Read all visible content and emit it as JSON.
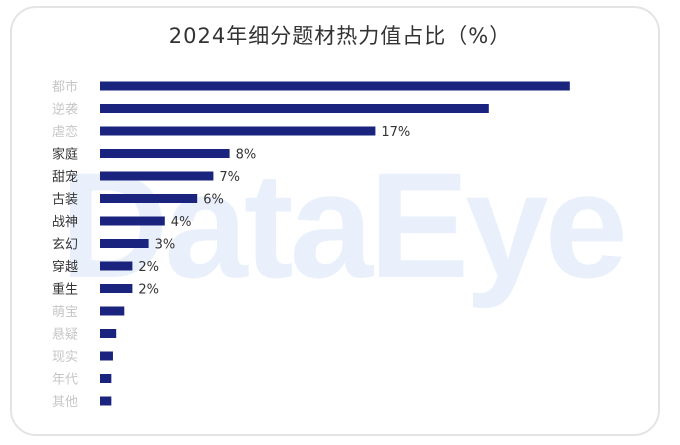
{
  "chart_data": {
    "type": "bar",
    "orientation": "horizontal",
    "title": "2024年细分题材热力值占比（%）",
    "watermark": "DataEye",
    "bar_color": "#1a237e",
    "categories": [
      "都市",
      "逆袭",
      "虐恋",
      "家庭",
      "甜宠",
      "古装",
      "战神",
      "玄幻",
      "穿越",
      "重生",
      "萌宝",
      "悬疑",
      "现实",
      "年代",
      "其他"
    ],
    "values": [
      29,
      24,
      17,
      8,
      7,
      6,
      4,
      3,
      2,
      2,
      1.5,
      1,
      0.8,
      0.7,
      0.7
    ],
    "value_labels": [
      "",
      "",
      "17%",
      "8%",
      "7%",
      "6%",
      "4%",
      "3%",
      "2%",
      "2%",
      "",
      "",
      "",
      "",
      ""
    ],
    "category_label_visible": [
      false,
      false,
      false,
      true,
      true,
      true,
      true,
      true,
      true,
      true,
      false,
      false,
      false,
      false,
      false
    ],
    "xlim": [
      0,
      30
    ]
  }
}
